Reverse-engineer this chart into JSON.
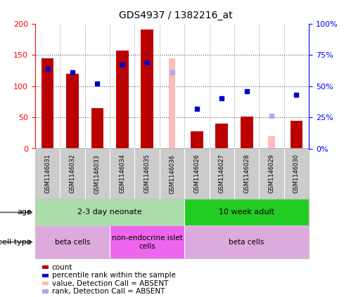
{
  "title": "GDS4937 / 1382216_at",
  "samples": [
    "GSM1146031",
    "GSM1146032",
    "GSM1146033",
    "GSM1146034",
    "GSM1146035",
    "GSM1146036",
    "GSM1146026",
    "GSM1146027",
    "GSM1146028",
    "GSM1146029",
    "GSM1146030"
  ],
  "count_values": [
    145,
    120,
    65,
    157,
    191,
    null,
    28,
    40,
    51,
    null,
    44
  ],
  "count_absent": [
    null,
    null,
    null,
    null,
    null,
    145,
    null,
    null,
    null,
    20,
    null
  ],
  "rank_values": [
    64,
    61,
    52,
    67,
    69,
    null,
    32,
    40,
    46,
    null,
    43
  ],
  "rank_absent": [
    null,
    null,
    null,
    null,
    null,
    61,
    null,
    null,
    null,
    26,
    null
  ],
  "ylim_left": [
    0,
    200
  ],
  "ylim_right": [
    0,
    100
  ],
  "left_ticks": [
    0,
    50,
    100,
    150,
    200
  ],
  "right_ticks": [
    0,
    25,
    50,
    75,
    100
  ],
  "left_tick_labels": [
    "0",
    "50",
    "100",
    "150",
    "200"
  ],
  "right_tick_labels": [
    "0%",
    "25%",
    "50%",
    "75%",
    "100%"
  ],
  "age_groups": [
    {
      "label": "2-3 day neonate",
      "start": 0,
      "end": 6,
      "color": "#aaddaa"
    },
    {
      "label": "10 week adult",
      "start": 6,
      "end": 11,
      "color": "#22cc22"
    }
  ],
  "cell_type_groups": [
    {
      "label": "beta cells",
      "start": 0,
      "end": 3,
      "color": "#ddaadd"
    },
    {
      "label": "non-endocrine islet\ncells",
      "start": 3,
      "end": 6,
      "color": "#ee66ee"
    },
    {
      "label": "beta cells",
      "start": 6,
      "end": 11,
      "color": "#ddaadd"
    }
  ],
  "bar_color": "#BB0000",
  "absent_bar_color": "#FFBBBB",
  "rank_color": "#0000CC",
  "rank_absent_color": "#AAAAEE",
  "legend": [
    {
      "label": "count",
      "color": "#BB0000",
      "type": "square"
    },
    {
      "label": "percentile rank within the sample",
      "color": "#0000CC",
      "type": "square"
    },
    {
      "label": "value, Detection Call = ABSENT",
      "color": "#FFBBBB",
      "type": "square"
    },
    {
      "label": "rank, Detection Call = ABSENT",
      "color": "#AAAAEE",
      "type": "square"
    }
  ],
  "bg_color": "#ffffff",
  "sample_bg": "#cccccc",
  "grid_color": "#888888"
}
